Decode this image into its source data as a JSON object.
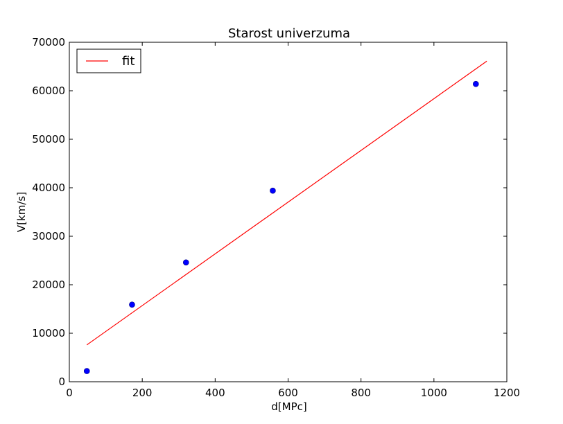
{
  "chart_data": {
    "type": "scatter",
    "title": "Starost univerzuma",
    "xlabel": "d[MPc]",
    "ylabel": "V[km/s]",
    "xlim": [
      0,
      1200
    ],
    "ylim": [
      0,
      70000
    ],
    "xticks": [
      0,
      200,
      400,
      600,
      800,
      1000,
      1200
    ],
    "yticks": [
      0,
      10000,
      20000,
      30000,
      40000,
      50000,
      60000,
      70000
    ],
    "grid": false,
    "legend_position": "top-left",
    "series": [
      {
        "kind": "points",
        "color": "#0000ff",
        "x": [
          48,
          172,
          320,
          558,
          1115
        ],
        "y": [
          2200,
          15900,
          24600,
          39400,
          61400
        ]
      },
      {
        "kind": "line",
        "name": "fit",
        "color": "#ff0000",
        "x": [
          48,
          1145
        ],
        "y": [
          7600,
          66100
        ]
      }
    ]
  }
}
